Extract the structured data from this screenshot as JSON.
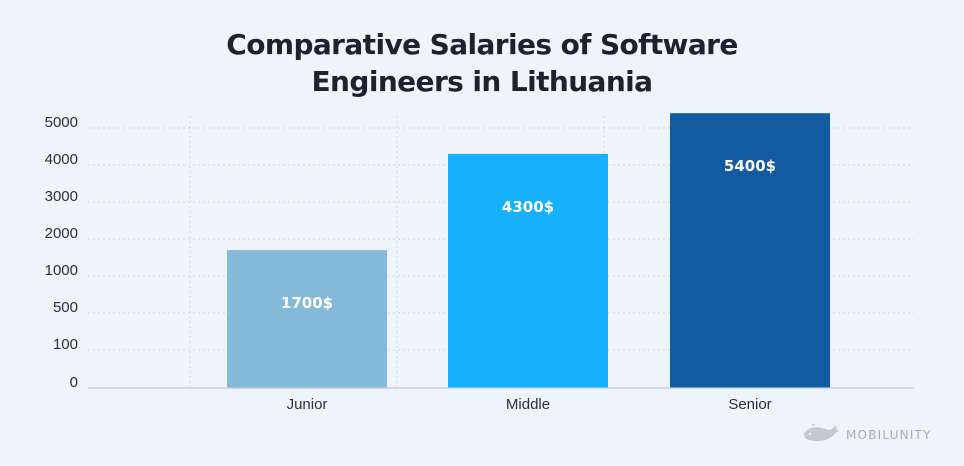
{
  "chart_data": {
    "type": "bar",
    "title": "Comparative Salaries of Software Engineers in Lithuania",
    "title_lines": [
      "Comparative Salaries of Software",
      "Engineers in Lithuania"
    ],
    "categories": [
      "Junior",
      "Middle",
      "Senior"
    ],
    "values": [
      1700,
      4300,
      5400
    ],
    "data_labels": [
      "1700$",
      "4300$",
      "5400$"
    ],
    "bar_colors": [
      "#84b9da",
      "#16b0fc",
      "#135ba1"
    ],
    "y_ticks": [
      "0",
      "100",
      "500",
      "1000",
      "2000",
      "3000",
      "4000",
      "5000"
    ],
    "y_scale": "non-linear (labels evenly spaced)",
    "xlabel": "",
    "ylabel": "",
    "grid": true,
    "legend": "none"
  },
  "brand": {
    "name": "MOBILUNITY",
    "icon": "whale-icon"
  },
  "colors": {
    "background": "#eff4fb",
    "title": "#1b2330",
    "axis_text": "#2b2f36",
    "gridline": "#cfd8e3",
    "data_label": "#ffffff",
    "brand_text": "#a6acb3"
  }
}
